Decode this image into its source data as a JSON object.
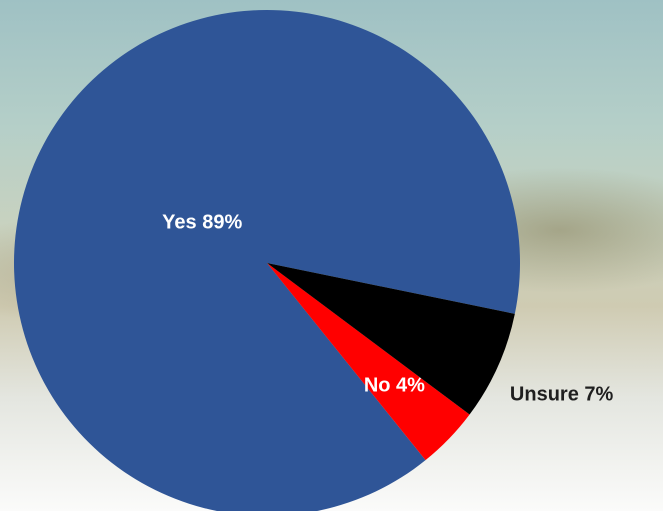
{
  "chart_data": {
    "type": "pie",
    "values": [
      89,
      4,
      7
    ],
    "value_labels": [
      "Yes 89%",
      "No 4%",
      "Unsure 7%"
    ],
    "colors": [
      "#2f5597",
      "#ff0000",
      "#000000"
    ]
  }
}
